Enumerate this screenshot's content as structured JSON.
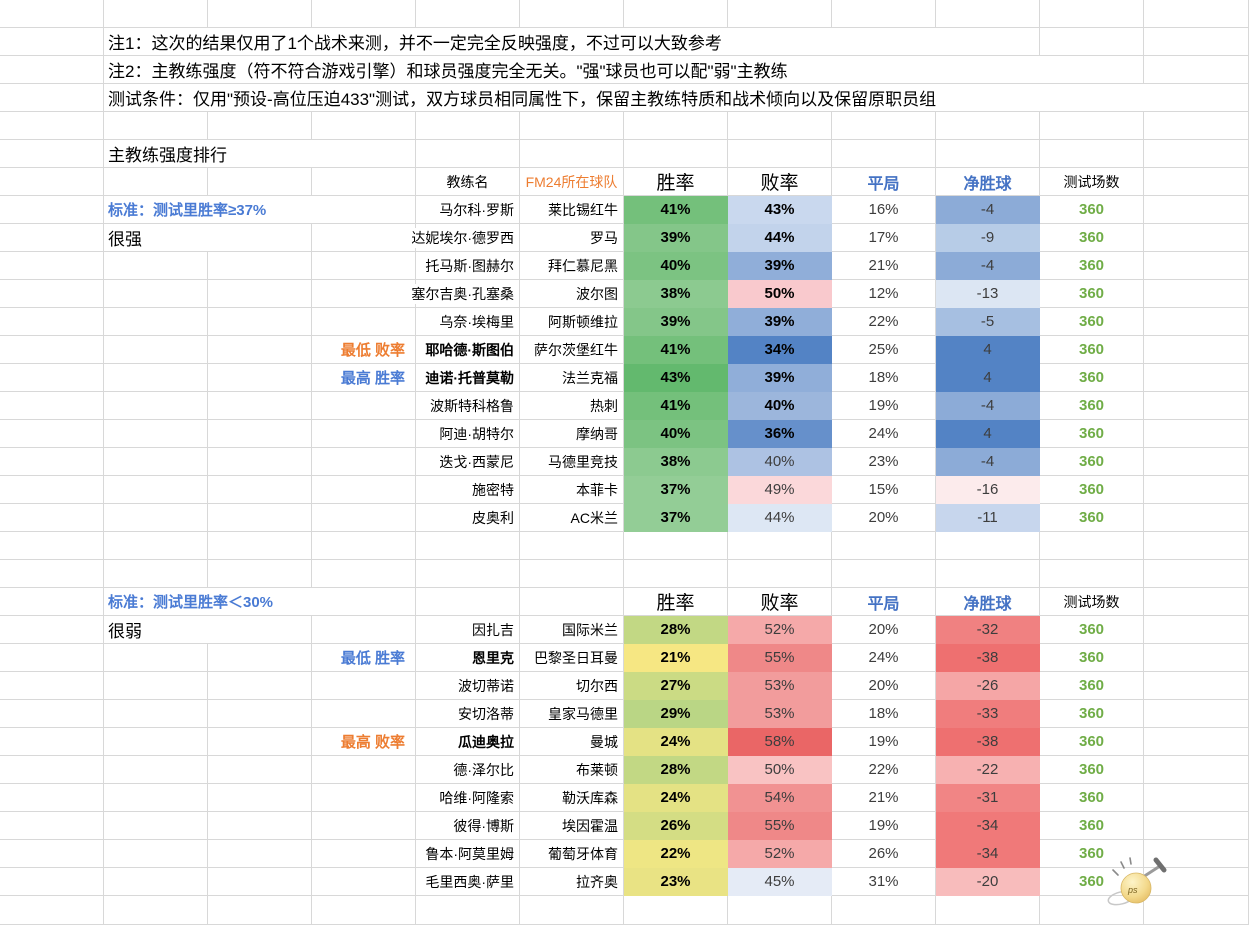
{
  "notes": {
    "note1": "注1：这次的结果仅用了1个战术来测，并不一定完全反映强度，不过可以大致参考",
    "note2": "注2：主教练强度（符不符合游戏引擎）和球员强度完全无关。\"强\"球员也可以配\"弱\"主教练",
    "conditions": "测试条件：仅用\"预设-高位压迫433\"测试，双方球员相同属性下，保留主教练特质和战术倾向以及保留原职员组"
  },
  "title": "主教练强度排行",
  "colors": {
    "accent_blue": "#4472c4",
    "accent_orange": "#ed7d31",
    "accent_green": "#70ad47",
    "gridline": "#d8d8d8"
  },
  "watermark": {
    "text": "ps"
  },
  "tables": [
    {
      "criteria": "标准：测试里胜率≥37%",
      "group_label": "很强",
      "headers": {
        "coach": "教练名",
        "team": "FM24所在球队",
        "win": "胜率",
        "loss": "败率",
        "draw": "平局",
        "gd": "净胜球",
        "games": "测试场数"
      },
      "rows": [
        {
          "coach": "马尔科·罗斯",
          "team": "莱比锡红牛",
          "win": "41%",
          "win_bg": "#74c07b",
          "loss": "43%",
          "loss_bg": "#c9d8ee",
          "loss_bold": true,
          "draw": "16%",
          "gd": "-4",
          "gd_bg": "#8cabd7",
          "games": "360"
        },
        {
          "coach": "达妮埃尔·德罗西",
          "team": "罗马",
          "win": "39%",
          "win_bg": "#84c689",
          "loss": "44%",
          "loss_bg": "#c2d3eb",
          "loss_bold": true,
          "draw": "17%",
          "gd": "-9",
          "gd_bg": "#b7cce7",
          "games": "360"
        },
        {
          "coach": "托马斯·图赫尔",
          "team": "拜仁慕尼黑",
          "win": "40%",
          "win_bg": "#7cc382",
          "loss": "39%",
          "loss_bg": "#90aed9",
          "loss_bold": true,
          "draw": "21%",
          "gd": "-4",
          "gd_bg": "#8cabd7",
          "games": "360"
        },
        {
          "coach": "塞尔吉奥·孔塞桑",
          "team": "波尔图",
          "win": "38%",
          "win_bg": "#8cca90",
          "loss": "50%",
          "loss_bg": "#f9c9cd",
          "loss_bold": true,
          "draw": "12%",
          "gd": "-13",
          "gd_bg": "#dce6f3",
          "games": "360"
        },
        {
          "coach": "乌奈·埃梅里",
          "team": "阿斯顿维拉",
          "win": "39%",
          "win_bg": "#84c689",
          "loss": "39%",
          "loss_bg": "#90aed9",
          "loss_bold": true,
          "draw": "22%",
          "gd": "-5",
          "gd_bg": "#a6bfe1",
          "games": "360"
        },
        {
          "tag": {
            "text": "最低 败率",
            "kind": "loss"
          },
          "coach": "耶哈德·斯图伯",
          "coach_bold": true,
          "team": "萨尔茨堡红牛",
          "win": "41%",
          "win_bg": "#74c07b",
          "loss": "34%",
          "loss_bg": "#5383c5",
          "loss_bold": true,
          "draw": "25%",
          "gd": "4",
          "gd_bg": "#5383c5",
          "games": "360"
        },
        {
          "tag": {
            "text": "最高 胜率",
            "kind": "win"
          },
          "coach": "迪诺·托普莫勒",
          "coach_bold": true,
          "team": "法兰克福",
          "win": "43%",
          "win_bg": "#63b96e",
          "loss": "39%",
          "loss_bg": "#90aed9",
          "loss_bold": true,
          "draw": "18%",
          "gd": "4",
          "gd_bg": "#5383c5",
          "games": "360"
        },
        {
          "coach": "波斯特科格鲁",
          "team": "热刺",
          "win": "41%",
          "win_bg": "#74c07b",
          "loss": "40%",
          "loss_bg": "#9cb6dc",
          "loss_bold": true,
          "draw": "19%",
          "gd": "-4",
          "gd_bg": "#8cabd7",
          "games": "360"
        },
        {
          "coach": "阿迪·胡特尔",
          "team": "摩纳哥",
          "win": "40%",
          "win_bg": "#7cc382",
          "loss": "36%",
          "loss_bg": "#6690cb",
          "loss_bold": true,
          "draw": "24%",
          "gd": "4",
          "gd_bg": "#5383c5",
          "games": "360"
        },
        {
          "coach": "迭戈·西蒙尼",
          "team": "马德里竞技",
          "win": "38%",
          "win_bg": "#8cca90",
          "loss": "40%",
          "loss_bg": "#adc2e3",
          "loss_bold": false,
          "draw": "23%",
          "gd": "-4",
          "gd_bg": "#8cabd7",
          "games": "360"
        },
        {
          "coach": "施密特",
          "team": "本菲卡",
          "win": "37%",
          "win_bg": "#93cd96",
          "loss": "49%",
          "loss_bg": "#fbd8da",
          "loss_bold": false,
          "draw": "15%",
          "gd": "-16",
          "gd_bg": "#fcebec",
          "games": "360"
        },
        {
          "coach": "皮奥利",
          "team": "AC米兰",
          "win": "37%",
          "win_bg": "#93cd96",
          "loss": "44%",
          "loss_bg": "#dde7f4",
          "loss_bold": false,
          "draw": "20%",
          "gd": "-11",
          "gd_bg": "#c7d6ed",
          "games": "360"
        }
      ]
    },
    {
      "criteria": "标准：测试里胜率＜30%",
      "group_label": "很弱",
      "headers": {
        "win": "胜率",
        "loss": "败率",
        "draw": "平局",
        "gd": "净胜球",
        "games": "测试场数"
      },
      "rows": [
        {
          "coach": "因扎吉",
          "team": "国际米兰",
          "win": "28%",
          "win_bg": "#c2d884",
          "loss": "52%",
          "loss_bg": "#f5a9a9",
          "loss_bold": false,
          "draw": "20%",
          "gd": "-32",
          "gd_bg": "#f08181",
          "games": "360"
        },
        {
          "tag": {
            "text": "最低 胜率",
            "kind": "win"
          },
          "coach": "恩里克",
          "coach_bold": true,
          "team": "巴黎圣日耳曼",
          "win": "21%",
          "win_bg": "#f6e783",
          "loss": "55%",
          "loss_bg": "#ef8888",
          "loss_bold": false,
          "draw": "24%",
          "gd": "-38",
          "gd_bg": "#ee7070",
          "games": "360"
        },
        {
          "coach": "波切蒂诺",
          "team": "切尔西",
          "win": "27%",
          "win_bg": "#cbdb84",
          "loss": "53%",
          "loss_bg": "#f29c9c",
          "loss_bold": false,
          "draw": "20%",
          "gd": "-26",
          "gd_bg": "#f5a6a6",
          "games": "360"
        },
        {
          "coach": "安切洛蒂",
          "team": "皇家马德里",
          "win": "29%",
          "win_bg": "#bad685",
          "loss": "53%",
          "loss_bg": "#f29c9c",
          "loss_bold": false,
          "draw": "18%",
          "gd": "-33",
          "gd_bg": "#f07d7d",
          "games": "360"
        },
        {
          "tag": {
            "text": "最高 败率",
            "kind": "loss"
          },
          "coach": "瓜迪奥拉",
          "coach_bold": true,
          "team": "曼城",
          "win": "24%",
          "win_bg": "#e4e284",
          "loss": "58%",
          "loss_bg": "#ea6666",
          "loss_bold": false,
          "draw": "19%",
          "gd": "-38",
          "gd_bg": "#ee7070",
          "games": "360"
        },
        {
          "coach": "德·泽尔比",
          "team": "布莱顿",
          "win": "28%",
          "win_bg": "#c2d884",
          "loss": "50%",
          "loss_bg": "#f9c3c3",
          "loss_bold": false,
          "draw": "22%",
          "gd": "-22",
          "gd_bg": "#f7b1b1",
          "games": "360"
        },
        {
          "coach": "哈维·阿隆索",
          "team": "勒沃库森",
          "win": "24%",
          "win_bg": "#e4e284",
          "loss": "54%",
          "loss_bg": "#f19292",
          "loss_bold": false,
          "draw": "21%",
          "gd": "-31",
          "gd_bg": "#f18585",
          "games": "360"
        },
        {
          "coach": "彼得·博斯",
          "team": "埃因霍温",
          "win": "26%",
          "win_bg": "#d4dd84",
          "loss": "55%",
          "loss_bg": "#ef8888",
          "loss_bold": false,
          "draw": "19%",
          "gd": "-34",
          "gd_bg": "#f07979",
          "games": "360"
        },
        {
          "coach": "鲁本·阿莫里姆",
          "team": "葡萄牙体育",
          "win": "22%",
          "win_bg": "#eee684",
          "loss": "52%",
          "loss_bg": "#f5a9a9",
          "loss_bold": false,
          "draw": "26%",
          "gd": "-34",
          "gd_bg": "#f07979",
          "games": "360"
        },
        {
          "coach": "毛里西奥·萨里",
          "team": "拉齐奥",
          "win": "23%",
          "win_bg": "#e9e384",
          "loss": "45%",
          "loss_bg": "#e5ebf6",
          "loss_bold": false,
          "draw": "31%",
          "gd": "-20",
          "gd_bg": "#f8bcbc",
          "games": "360"
        }
      ]
    }
  ]
}
